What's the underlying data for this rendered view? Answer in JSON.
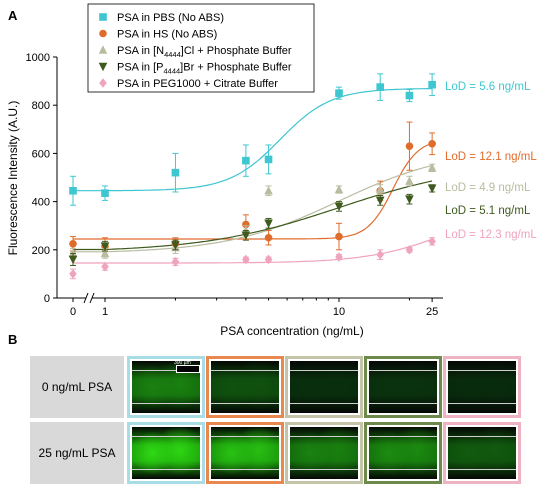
{
  "panel_a_label": "A",
  "panel_b_label": "B",
  "chart_data": {
    "type": "scatter",
    "title": "",
    "xlabel": "PSA concentration (ng/mL)",
    "ylabel": "Fluorescence Intensity (A.U.)",
    "x_scale": "log-with-zero-break",
    "ylim": [
      0,
      1000
    ],
    "y_ticks": [
      "0",
      "200",
      "400",
      "600",
      "800",
      "1000"
    ],
    "x_ticks": [
      "0",
      "1",
      "10",
      "25"
    ],
    "legend_position": "top-left",
    "grid": false,
    "series": [
      {
        "name": "PSA in PBS (No ABS)",
        "color": "#3ec6d1",
        "marker": "square",
        "lod_label": "LoD = 5.6 ng/mL",
        "x": [
          0,
          1,
          2,
          4,
          5,
          10,
          15,
          20,
          25
        ],
        "y": [
          445,
          435,
          520,
          570,
          575,
          850,
          875,
          840,
          885
        ],
        "err": [
          60,
          30,
          80,
          65,
          60,
          25,
          55,
          25,
          45
        ],
        "fit_ec50": 5.6,
        "fit_bottom": 445,
        "fit_top": 870,
        "fit_hill": 4
      },
      {
        "name": "PSA in HS (No ABS)",
        "color": "#e06c2c",
        "marker": "circle",
        "lod_label": "LoD = 12.1 ng/mL",
        "x": [
          0,
          1,
          2,
          4,
          5,
          10,
          15,
          20,
          25
        ],
        "y": [
          225,
          215,
          225,
          305,
          250,
          255,
          445,
          630,
          640
        ],
        "err": [
          30,
          35,
          25,
          40,
          30,
          55,
          40,
          100,
          45
        ],
        "fit_ec50": 17,
        "fit_bottom": 245,
        "fit_top": 660,
        "fit_hill": 8
      },
      {
        "name": "PSA in [N4444]Cl + Phosphate Buffer",
        "legend_main": "PSA in [N",
        "legend_sub": "4444",
        "legend_rest": "]Cl + Phosphate Buffer",
        "color": "#b9bca0",
        "marker": "triangle-up",
        "lod_label": "LoD = 4.9 ng/mL",
        "x": [
          0,
          1,
          2,
          4,
          5,
          10,
          15,
          20,
          25
        ],
        "y": [
          185,
          185,
          210,
          280,
          445,
          450,
          450,
          485,
          540
        ],
        "err": [
          20,
          20,
          25,
          20,
          20,
          15,
          20,
          20,
          15
        ],
        "fit_ec50": 10,
        "fit_bottom": 185,
        "fit_top": 620,
        "fit_hill": 1.8
      },
      {
        "name": "PSA in [P4444]Br + Phosphate Buffer",
        "legend_main": "PSA in [P",
        "legend_sub": "4444",
        "legend_rest": "]Br + Phosphate Buffer",
        "color": "#3e5a1e",
        "marker": "triangle-down",
        "lod_label": "LoD = 5.1 ng/mL",
        "x": [
          0,
          1,
          2,
          4,
          5,
          10,
          15,
          20,
          25
        ],
        "y": [
          160,
          215,
          220,
          260,
          310,
          380,
          405,
          410,
          455
        ],
        "err": [
          25,
          20,
          20,
          20,
          20,
          20,
          20,
          20,
          15
        ],
        "fit_ec50": 10,
        "fit_bottom": 190,
        "fit_top": 560,
        "fit_hill": 1.5
      },
      {
        "name": "PSA in PEG1000 + Citrate Buffer",
        "color": "#f0a3bd",
        "marker": "diamond",
        "lod_label": "LoD = 12.3 ng/mL",
        "x": [
          0,
          1,
          2,
          4,
          5,
          10,
          15,
          20,
          25
        ],
        "y": [
          100,
          130,
          150,
          160,
          160,
          170,
          180,
          200,
          235
        ],
        "err": [
          20,
          15,
          15,
          10,
          10,
          10,
          20,
          10,
          15
        ],
        "fit_ec50": 30,
        "fit_bottom": 145,
        "fit_top": 400,
        "fit_hill": 2.5
      }
    ]
  },
  "panel_b": {
    "row_labels": [
      "0 ng/mL PSA",
      "25 ng/mL PSA"
    ],
    "scalebar_label": "300 µm",
    "tile_border_colors": [
      "#a9dde6",
      "#e8884f",
      "#c3c4a8",
      "#6d8a4c",
      "#efb2c3"
    ],
    "tile_brightness": [
      [
        0.55,
        0.3,
        0.1,
        0.12,
        0.08
      ],
      [
        0.95,
        0.85,
        0.55,
        0.6,
        0.35
      ]
    ]
  }
}
